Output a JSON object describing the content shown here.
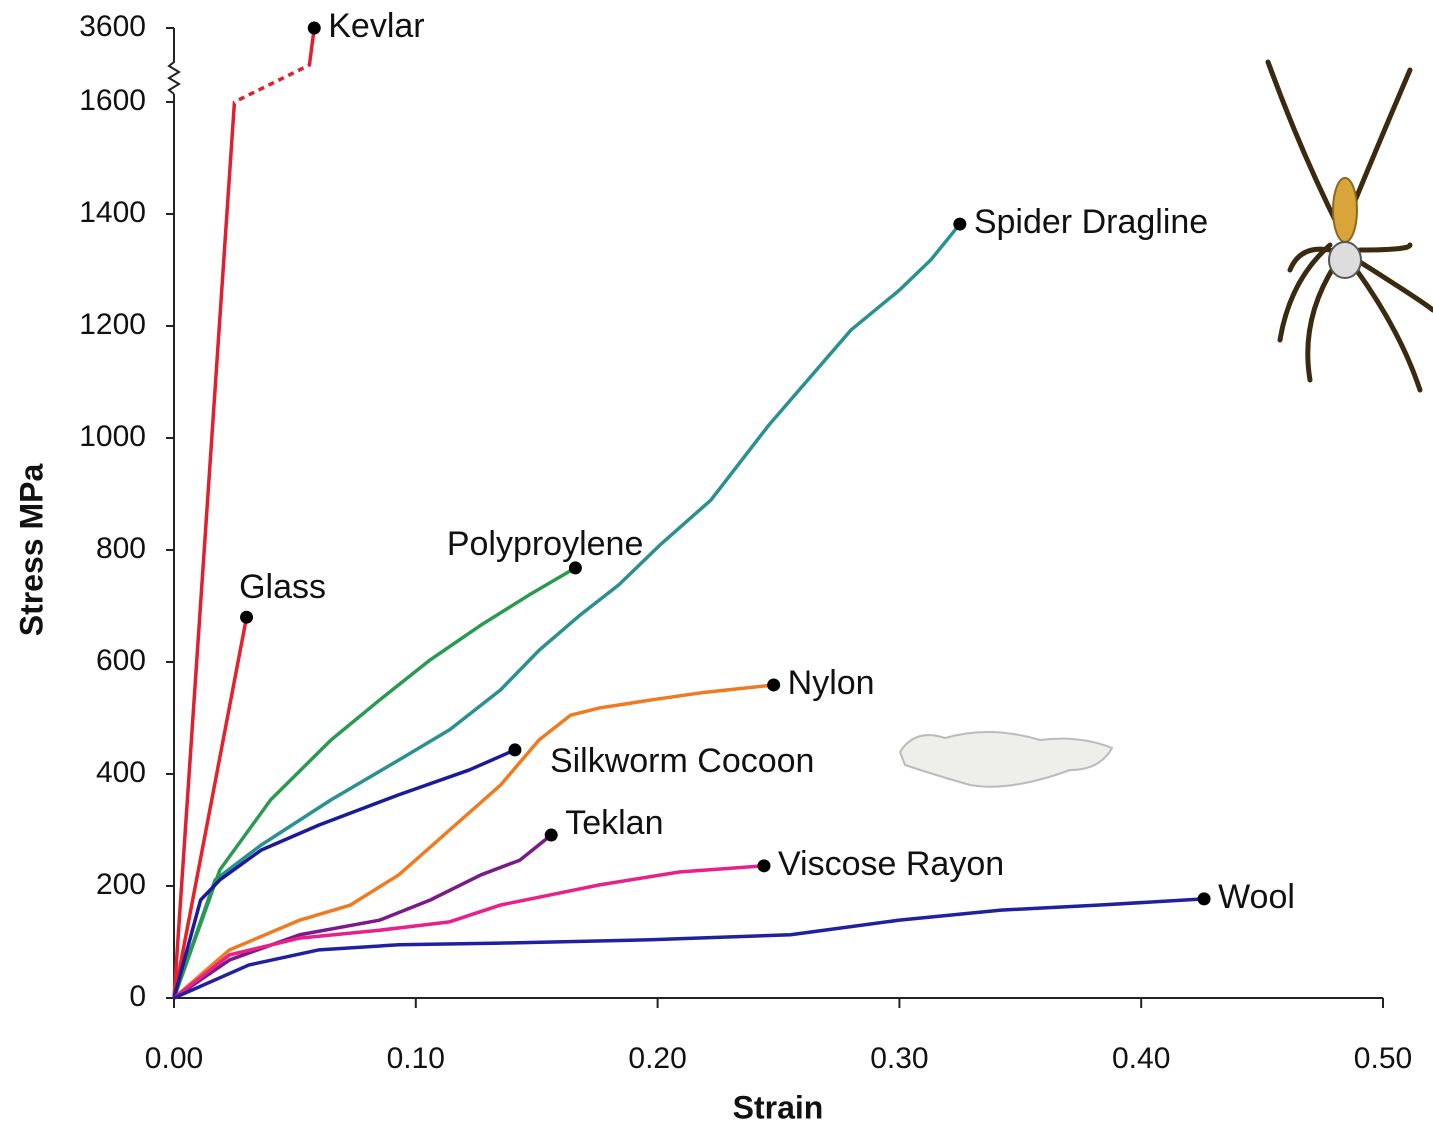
{
  "chart_data": {
    "type": "line",
    "x_label": "Strain",
    "y_label": "Stress MPa",
    "xlim": [
      0,
      0.5
    ],
    "xticks": [
      {
        "value": 0,
        "label": "0.00"
      },
      {
        "value": 0.1,
        "label": "0.10"
      },
      {
        "value": 0.2,
        "label": "0.20"
      },
      {
        "value": 0.3,
        "label": "0.30"
      },
      {
        "value": 0.4,
        "label": "0.40"
      },
      {
        "value": 0.5,
        "label": "0.50"
      }
    ],
    "ylim": [
      0,
      3600
    ],
    "yticks": [
      0,
      200,
      400,
      600,
      800,
      1000,
      1200,
      1400,
      1600,
      3600
    ],
    "y_break": true,
    "series": [
      {
        "name": "Kevlar",
        "color": "#e0202e",
        "x": [
          0,
          0.025,
          0.056,
          0.058
        ],
        "values": [
          0,
          1600,
          2600,
          3600
        ]
      },
      {
        "name": "Spider Dragline",
        "color": "#2a9090",
        "x": [
          0,
          0.017,
          0.036,
          0.065,
          0.093,
          0.114,
          0.135,
          0.151,
          0.168,
          0.184,
          0.201,
          0.222,
          0.246,
          0.28,
          0.3,
          0.313,
          0.325
        ],
        "values": [
          0,
          211,
          273,
          354,
          425,
          479,
          550,
          621,
          684,
          738,
          809,
          889,
          1023,
          1193,
          1264,
          1318,
          1382
        ]
      },
      {
        "name": "Polyproylene",
        "color": "#2a9a50",
        "x": [
          0,
          0.019,
          0.04,
          0.065,
          0.085,
          0.106,
          0.127,
          0.147,
          0.166
        ],
        "values": [
          0,
          229,
          354,
          461,
          532,
          604,
          666,
          720,
          768
        ]
      },
      {
        "name": "Glass",
        "color": "#e8202a",
        "x": [
          0,
          0.03
        ],
        "values": [
          0,
          680
        ]
      },
      {
        "name": "Nylon",
        "color": "#f07a20",
        "x": [
          0,
          0.023,
          0.052,
          0.073,
          0.093,
          0.114,
          0.135,
          0.151,
          0.164,
          0.176,
          0.197,
          0.218,
          0.248
        ],
        "values": [
          0,
          86,
          139,
          166,
          220,
          300,
          380,
          461,
          505,
          518,
          532,
          545,
          559
        ]
      },
      {
        "name": "Silkworm Cocoon",
        "color": "#1a1a9a",
        "x": [
          0,
          0.011,
          0.019,
          0.036,
          0.06,
          0.093,
          0.122,
          0.141
        ],
        "values": [
          0,
          175,
          211,
          264,
          309,
          363,
          407,
          443
        ]
      },
      {
        "name": "Teklan",
        "color": "#7a1a8a",
        "x": [
          0,
          0.023,
          0.052,
          0.085,
          0.106,
          0.127,
          0.143,
          0.156
        ],
        "values": [
          0,
          68,
          113,
          139,
          175,
          220,
          246,
          291
        ]
      },
      {
        "name": "Viscose Rayon",
        "color": "#e8208a",
        "x": [
          0,
          0.023,
          0.052,
          0.085,
          0.114,
          0.135,
          0.176,
          0.209,
          0.244
        ],
        "values": [
          0,
          77,
          107,
          121,
          136,
          166,
          202,
          225,
          236
        ]
      },
      {
        "name": "Wool",
        "color": "#2020a0",
        "x": [
          0,
          0.031,
          0.06,
          0.093,
          0.135,
          0.197,
          0.255,
          0.3,
          0.342,
          0.383,
          0.426
        ],
        "values": [
          0,
          59,
          86,
          95,
          98,
          104,
          113,
          139,
          157,
          166,
          177
        ]
      }
    ]
  }
}
